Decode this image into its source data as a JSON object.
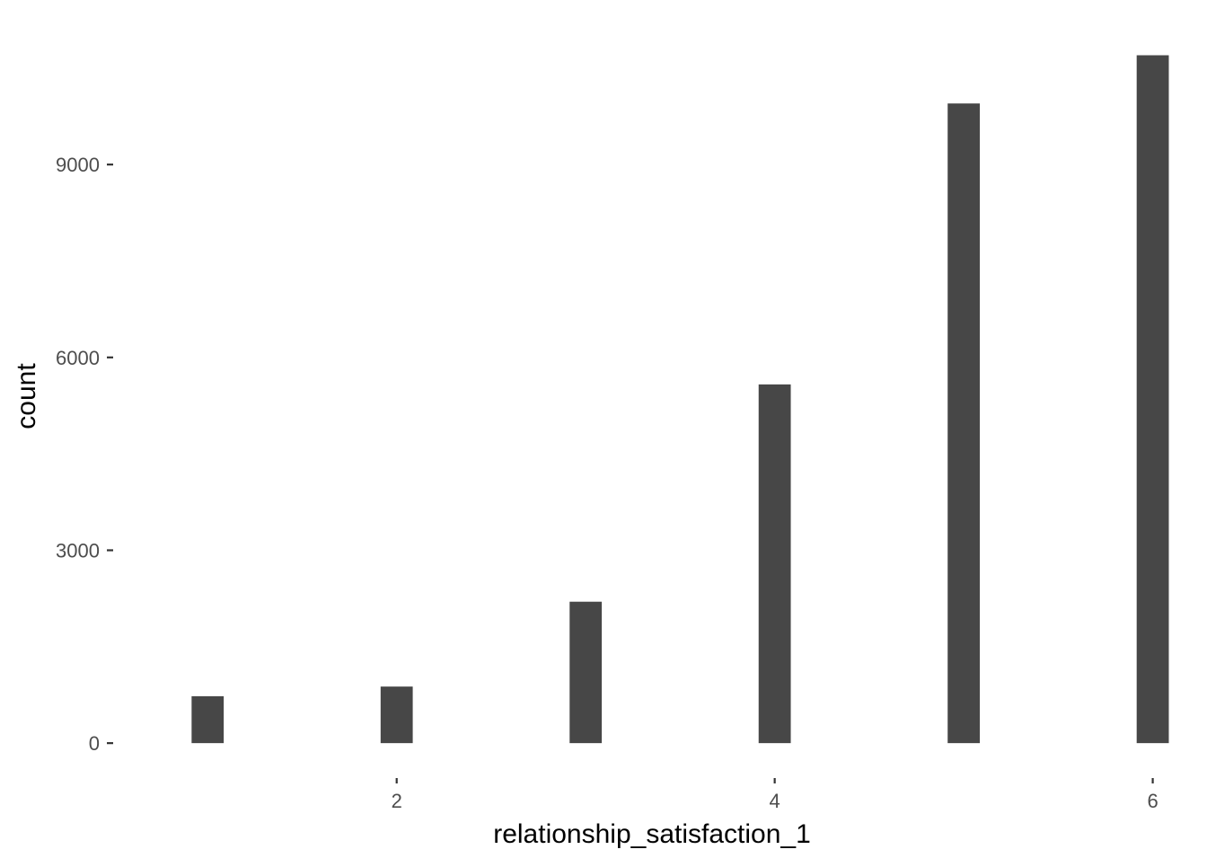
{
  "chart_data": {
    "type": "bar",
    "title": "",
    "xlabel": "relationship_satisfaction_1",
    "ylabel": "count",
    "x": [
      1,
      2,
      3,
      4,
      5,
      6
    ],
    "values": [
      730,
      880,
      2200,
      5580,
      9950,
      10700
    ],
    "xlim": [
      0.5,
      6.04
    ],
    "ylim": [
      -40,
      11280
    ],
    "x_ticks": [
      2,
      4,
      6
    ],
    "y_ticks": [
      0,
      3000,
      6000,
      9000
    ],
    "x_tick_labels": [
      "2",
      "4",
      "6"
    ],
    "y_tick_labels": [
      "0",
      "3000",
      "6000",
      "9000"
    ],
    "grid": false,
    "legend": "none",
    "colors": {
      "bar": "#474747",
      "background": "#ffffff",
      "tick_text": "#4d4d4d",
      "axis_title": "#000000"
    }
  }
}
